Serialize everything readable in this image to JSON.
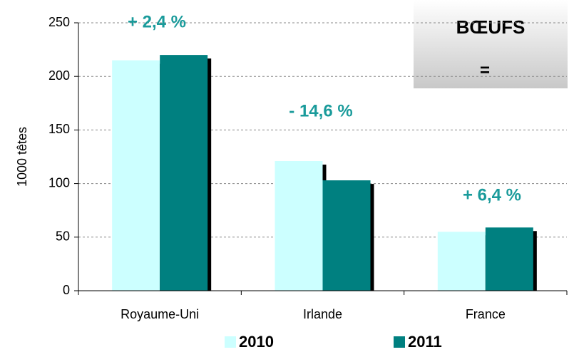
{
  "chart_data": {
    "type": "bar",
    "categories": [
      "Royaume-Uni",
      "Irlande",
      "France"
    ],
    "series": [
      {
        "name": "2010",
        "color": "#ccffff",
        "values": [
          215,
          121,
          55
        ]
      },
      {
        "name": "2011",
        "color": "#008080",
        "values": [
          220,
          103,
          59
        ]
      }
    ],
    "ylabel": "1000 têtes",
    "ylim": [
      0,
      250
    ],
    "yticks": [
      0,
      50,
      100,
      150,
      200,
      250
    ],
    "grid": true,
    "annotations": [
      "+ 2,4 %",
      "- 14,6 %",
      "+ 6,4 %"
    ],
    "box": {
      "title": "BŒUFS",
      "text": "="
    },
    "legend": "bottom"
  }
}
